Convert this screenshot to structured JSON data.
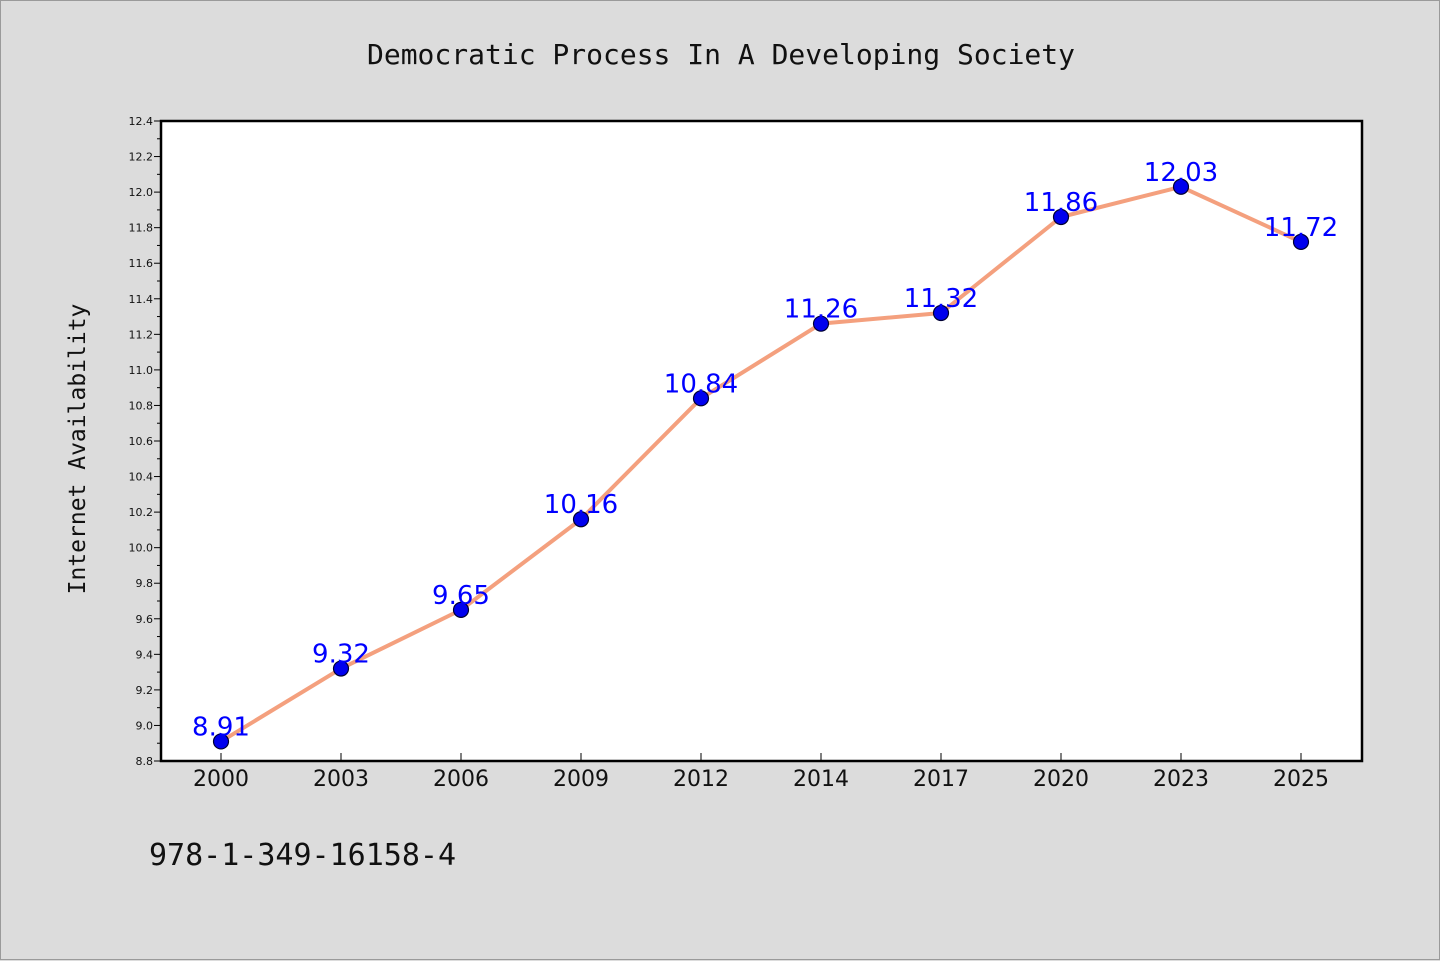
{
  "chart_data": {
    "type": "line",
    "title": "Democratic Process In A Developing Society",
    "xlabel": "",
    "ylabel": "Internet Availability",
    "categories": [
      "2000",
      "2003",
      "2006",
      "2009",
      "2012",
      "2014",
      "2017",
      "2020",
      "2023",
      "2025"
    ],
    "series": [
      {
        "values": [
          8.91,
          9.32,
          9.65,
          10.16,
          10.84,
          11.26,
          11.32,
          11.86,
          12.03,
          11.72
        ],
        "line_color": "#f4a07e",
        "marker_color": "#0000ee"
      }
    ],
    "data_labels": [
      "8.91",
      "9.32",
      "9.65",
      "10.16",
      "10.84",
      "11.26",
      "11.32",
      "11.86",
      "12.03",
      "11.72"
    ],
    "ylim": [
      8.8,
      12.4
    ],
    "yticks": [
      "8.8",
      "9.0",
      "9.2",
      "9.4",
      "9.6",
      "9.8",
      "10.0",
      "10.2",
      "10.4",
      "10.6",
      "10.8",
      "11.0",
      "11.2",
      "11.4",
      "11.6",
      "11.8",
      "12.0",
      "12.2",
      "12.4"
    ],
    "grid": false,
    "legend": "none",
    "label_color": "#0000ff",
    "footer_text": "978-1-349-16158-4"
  }
}
